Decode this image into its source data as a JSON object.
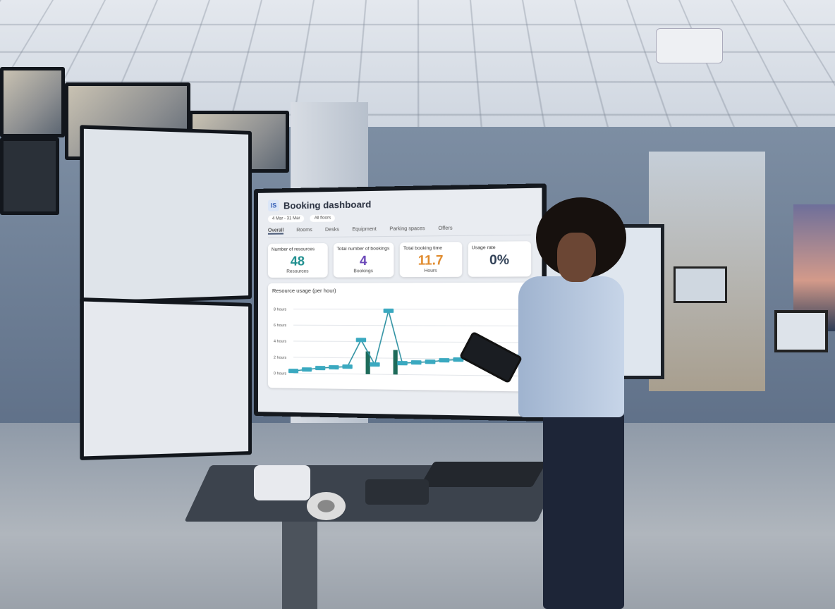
{
  "scene": "office control room with booking dashboard on a large monitor",
  "dashboard": {
    "title": "Booking dashboard",
    "logo": "IS",
    "filters": [
      "4 Mar - 31 Mar",
      "All floors"
    ],
    "tabs": [
      {
        "label": "Overall",
        "active": true
      },
      {
        "label": "Rooms"
      },
      {
        "label": "Desks"
      },
      {
        "label": "Equipment"
      },
      {
        "label": "Parking spaces"
      },
      {
        "label": "Offers"
      }
    ],
    "cards": [
      {
        "label": "Number of resources",
        "value": "48",
        "unit": "Resources",
        "color": "#1f8f8f"
      },
      {
        "label": "Total number of bookings",
        "value": "4",
        "unit": "Bookings",
        "color": "#6a46b8"
      },
      {
        "label": "Total booking time",
        "value": "11.7",
        "unit": "Hours",
        "color": "#e08a2c"
      },
      {
        "label": "Usage rate",
        "value": "0%",
        "unit": "",
        "color": "#2f3f55"
      }
    ],
    "chart_title": "Resource usage (per hour)"
  },
  "chart_data": {
    "type": "line",
    "title": "Resource usage (per hour)",
    "yticks": [
      "0 hours",
      "2 hours",
      "4 hours",
      "6 hours",
      "8 hours"
    ],
    "ylim": [
      0,
      9
    ],
    "values": [
      0.3,
      0.5,
      0.7,
      0.8,
      0.9,
      4.2,
      1.2,
      7.8,
      1.4,
      1.5,
      1.6,
      1.8,
      1.9,
      2.0,
      2.1,
      2.2,
      2.3,
      2.4
    ],
    "bars": [
      {
        "index": 5.5,
        "value": 2.8
      },
      {
        "index": 7.5,
        "value": 3.0
      }
    ],
    "line_color": "#2a8fa0",
    "bar_color": "#1e6b5a"
  }
}
